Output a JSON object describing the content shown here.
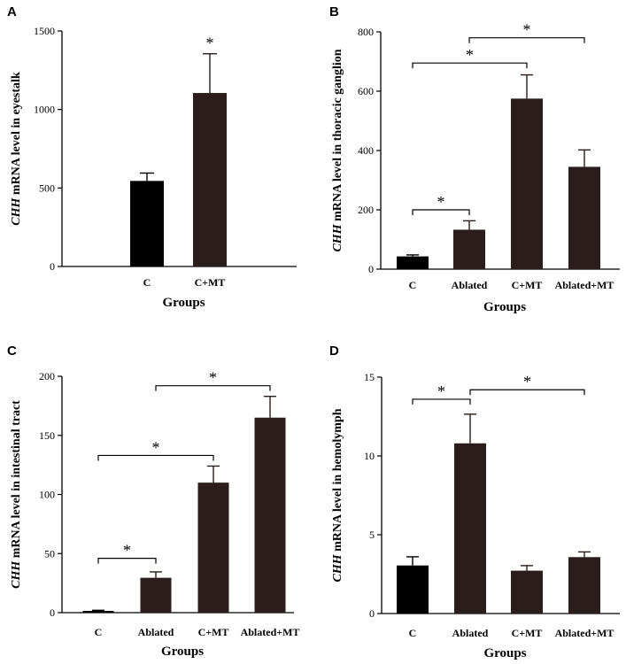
{
  "figure": {
    "colors": {
      "control": "#000000",
      "treated": "#2b1d1b",
      "line": "#000000"
    }
  },
  "chart_data": [
    {
      "type": "bar",
      "panel": "A",
      "categories": [
        "C",
        "C+MT"
      ],
      "values": [
        545,
        1105
      ],
      "errors": [
        50,
        250
      ],
      "xlabel": "Groups",
      "ylabel_italic": "CHH",
      "ylabel_rest": " mRNA level in eyestalk",
      "ylim": [
        0,
        1500
      ],
      "yticks": [
        "0",
        "500",
        "1000",
        "1500"
      ],
      "significance": [
        {
          "label": "*",
          "target": 1
        }
      ]
    },
    {
      "type": "bar",
      "panel": "B",
      "categories": [
        "C",
        "Ablated",
        "C+MT",
        "Ablated+MT"
      ],
      "values": [
        43,
        133,
        575,
        345
      ],
      "errors": [
        5,
        30,
        80,
        57
      ],
      "xlabel": "Groups",
      "ylabel_italic": "CHH",
      "ylabel_rest": " mRNA level in thoracic ganglion",
      "ylim": [
        0,
        800
      ],
      "yticks": [
        "0",
        "200",
        "400",
        "600",
        "800"
      ],
      "significance": [
        {
          "label": "*",
          "from": 0,
          "to": 1,
          "level": 200
        },
        {
          "label": "*",
          "from": 0,
          "to": 2,
          "level": 695
        },
        {
          "label": "*",
          "from": 1,
          "to": 3,
          "level": 780
        }
      ]
    },
    {
      "type": "bar",
      "panel": "C",
      "categories": [
        "C",
        "Ablated",
        "C+MT",
        "Ablated+MT"
      ],
      "values": [
        1.5,
        29.5,
        110,
        165
      ],
      "errors": [
        0.5,
        5,
        14,
        18
      ],
      "xlabel": "Groups",
      "ylabel_italic": "CHH",
      "ylabel_rest": " mRNA level in intestinal tract",
      "ylim": [
        0,
        200
      ],
      "yticks": [
        "0",
        "50",
        "100",
        "150",
        "200"
      ],
      "significance": [
        {
          "label": "*",
          "from": 0,
          "to": 1,
          "level": 46
        },
        {
          "label": "*",
          "from": 0,
          "to": 2,
          "level": 133
        },
        {
          "label": "*",
          "from": 1,
          "to": 3,
          "level": 192
        }
      ]
    },
    {
      "type": "bar",
      "panel": "D",
      "categories": [
        "C",
        "Ablated",
        "C+MT",
        "Ablated+MT"
      ],
      "values": [
        3.05,
        10.8,
        2.72,
        3.58
      ],
      "errors": [
        0.55,
        1.85,
        0.32,
        0.33
      ],
      "xlabel": "Groups",
      "ylabel_italic": "CHH",
      "ylabel_rest": " mRNA level in hemolymph",
      "ylim": [
        0,
        15
      ],
      "yticks": [
        "0",
        "5",
        "10",
        "15"
      ],
      "significance": [
        {
          "label": "*",
          "from": 0,
          "to": 1,
          "level": 13.6
        },
        {
          "label": "*",
          "from": 1,
          "to": 3,
          "level": 14.2
        }
      ]
    }
  ]
}
